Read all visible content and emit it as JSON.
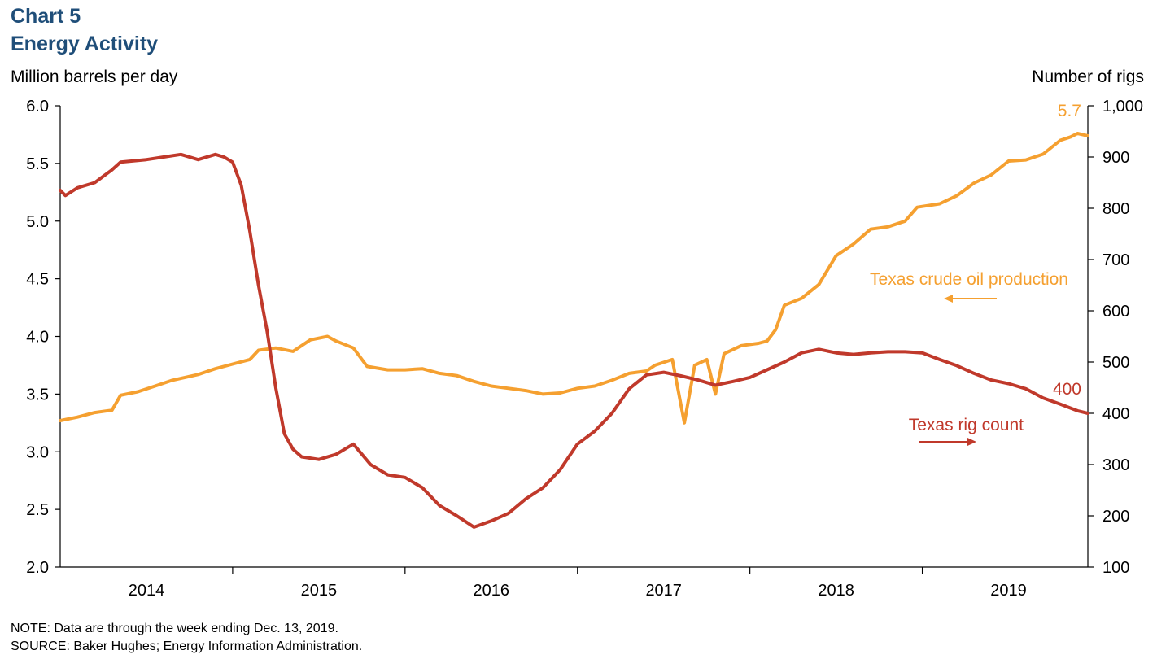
{
  "header": {
    "chart_number": "Chart 5",
    "title": "Energy Activity"
  },
  "footer": {
    "note": "NOTE: Data are through the week ending Dec. 13, 2019.",
    "source": "SOURCE: Baker Hughes; Energy Information Administration."
  },
  "colors": {
    "oil": "#f5a030",
    "rigs": "#c0392b",
    "title": "#1f4e79",
    "axis": "#000000"
  },
  "chart_data": {
    "type": "line",
    "x_unit": "year (decimal)",
    "x_range": [
      2014.0,
      2019.96
    ],
    "x_tick_labels": [
      "2014",
      "2015",
      "2016",
      "2017",
      "2018",
      "2019"
    ],
    "left_axis": {
      "label": "Million barrels per day",
      "range": [
        2.0,
        6.0
      ],
      "tick_labels": [
        "2.0",
        "2.5",
        "3.0",
        "3.5",
        "4.0",
        "4.5",
        "5.0",
        "5.5",
        "6.0"
      ]
    },
    "right_axis": {
      "label": "Number of rigs",
      "range": [
        100,
        1000
      ],
      "tick_labels": [
        "100",
        "200",
        "300",
        "400",
        "500",
        "600",
        "700",
        "800",
        "900",
        "1,000"
      ]
    },
    "grid": false,
    "series": [
      {
        "name": "Texas crude oil production",
        "axis": "left",
        "end_label": "5.7",
        "legend_arrow": "left",
        "points": [
          [
            2014.0,
            3.27
          ],
          [
            2014.1,
            3.3
          ],
          [
            2014.2,
            3.34
          ],
          [
            2014.3,
            3.36
          ],
          [
            2014.35,
            3.49
          ],
          [
            2014.45,
            3.52
          ],
          [
            2014.55,
            3.57
          ],
          [
            2014.65,
            3.62
          ],
          [
            2014.8,
            3.67
          ],
          [
            2014.9,
            3.72
          ],
          [
            2015.0,
            3.76
          ],
          [
            2015.1,
            3.8
          ],
          [
            2015.15,
            3.88
          ],
          [
            2015.25,
            3.9
          ],
          [
            2015.35,
            3.87
          ],
          [
            2015.45,
            3.97
          ],
          [
            2015.55,
            4.0
          ],
          [
            2015.6,
            3.96
          ],
          [
            2015.7,
            3.9
          ],
          [
            2015.78,
            3.74
          ],
          [
            2015.9,
            3.71
          ],
          [
            2016.0,
            3.71
          ],
          [
            2016.1,
            3.72
          ],
          [
            2016.2,
            3.68
          ],
          [
            2016.3,
            3.66
          ],
          [
            2016.4,
            3.61
          ],
          [
            2016.5,
            3.57
          ],
          [
            2016.6,
            3.55
          ],
          [
            2016.7,
            3.53
          ],
          [
            2016.8,
            3.5
          ],
          [
            2016.9,
            3.51
          ],
          [
            2017.0,
            3.55
          ],
          [
            2017.1,
            3.57
          ],
          [
            2017.2,
            3.62
          ],
          [
            2017.3,
            3.68
          ],
          [
            2017.4,
            3.7
          ],
          [
            2017.45,
            3.75
          ],
          [
            2017.55,
            3.8
          ],
          [
            2017.62,
            3.25
          ],
          [
            2017.68,
            3.75
          ],
          [
            2017.75,
            3.8
          ],
          [
            2017.8,
            3.5
          ],
          [
            2017.85,
            3.85
          ],
          [
            2017.95,
            3.92
          ],
          [
            2018.05,
            3.94
          ],
          [
            2018.1,
            3.96
          ],
          [
            2018.15,
            4.06
          ],
          [
            2018.2,
            4.27
          ],
          [
            2018.3,
            4.33
          ],
          [
            2018.4,
            4.45
          ],
          [
            2018.5,
            4.7
          ],
          [
            2018.6,
            4.8
          ],
          [
            2018.7,
            4.93
          ],
          [
            2018.8,
            4.95
          ],
          [
            2018.9,
            5.0
          ],
          [
            2018.97,
            5.12
          ],
          [
            2019.1,
            5.15
          ],
          [
            2019.2,
            5.22
          ],
          [
            2019.3,
            5.33
          ],
          [
            2019.4,
            5.4
          ],
          [
            2019.5,
            5.52
          ],
          [
            2019.6,
            5.53
          ],
          [
            2019.7,
            5.58
          ],
          [
            2019.8,
            5.7
          ],
          [
            2019.86,
            5.73
          ],
          [
            2019.9,
            5.76
          ],
          [
            2019.96,
            5.74
          ]
        ]
      },
      {
        "name": "Texas rig count",
        "axis": "right",
        "end_label": "400",
        "legend_arrow": "right",
        "points": [
          [
            2014.0,
            835
          ],
          [
            2014.03,
            825
          ],
          [
            2014.1,
            840
          ],
          [
            2014.2,
            850
          ],
          [
            2014.3,
            875
          ],
          [
            2014.35,
            890
          ],
          [
            2014.5,
            895
          ],
          [
            2014.6,
            900
          ],
          [
            2014.7,
            905
          ],
          [
            2014.8,
            895
          ],
          [
            2014.9,
            905
          ],
          [
            2014.95,
            900
          ],
          [
            2015.0,
            890
          ],
          [
            2015.05,
            845
          ],
          [
            2015.1,
            755
          ],
          [
            2015.15,
            650
          ],
          [
            2015.2,
            560
          ],
          [
            2015.25,
            450
          ],
          [
            2015.3,
            360
          ],
          [
            2015.35,
            330
          ],
          [
            2015.4,
            315
          ],
          [
            2015.5,
            310
          ],
          [
            2015.6,
            320
          ],
          [
            2015.7,
            340
          ],
          [
            2015.8,
            300
          ],
          [
            2015.9,
            280
          ],
          [
            2016.0,
            275
          ],
          [
            2016.1,
            255
          ],
          [
            2016.2,
            220
          ],
          [
            2016.3,
            200
          ],
          [
            2016.4,
            178
          ],
          [
            2016.5,
            190
          ],
          [
            2016.6,
            205
          ],
          [
            2016.7,
            233
          ],
          [
            2016.8,
            255
          ],
          [
            2016.9,
            290
          ],
          [
            2017.0,
            340
          ],
          [
            2017.1,
            365
          ],
          [
            2017.2,
            400
          ],
          [
            2017.3,
            448
          ],
          [
            2017.4,
            475
          ],
          [
            2017.5,
            480
          ],
          [
            2017.6,
            473
          ],
          [
            2017.7,
            465
          ],
          [
            2017.8,
            455
          ],
          [
            2017.9,
            462
          ],
          [
            2018.0,
            470
          ],
          [
            2018.1,
            485
          ],
          [
            2018.2,
            500
          ],
          [
            2018.3,
            518
          ],
          [
            2018.4,
            525
          ],
          [
            2018.5,
            518
          ],
          [
            2018.6,
            515
          ],
          [
            2018.7,
            518
          ],
          [
            2018.8,
            520
          ],
          [
            2018.9,
            520
          ],
          [
            2019.0,
            518
          ],
          [
            2019.1,
            505
          ],
          [
            2019.2,
            493
          ],
          [
            2019.3,
            478
          ],
          [
            2019.4,
            465
          ],
          [
            2019.5,
            458
          ],
          [
            2019.6,
            448
          ],
          [
            2019.7,
            430
          ],
          [
            2019.8,
            418
          ],
          [
            2019.9,
            405
          ],
          [
            2019.96,
            400
          ]
        ]
      }
    ]
  }
}
